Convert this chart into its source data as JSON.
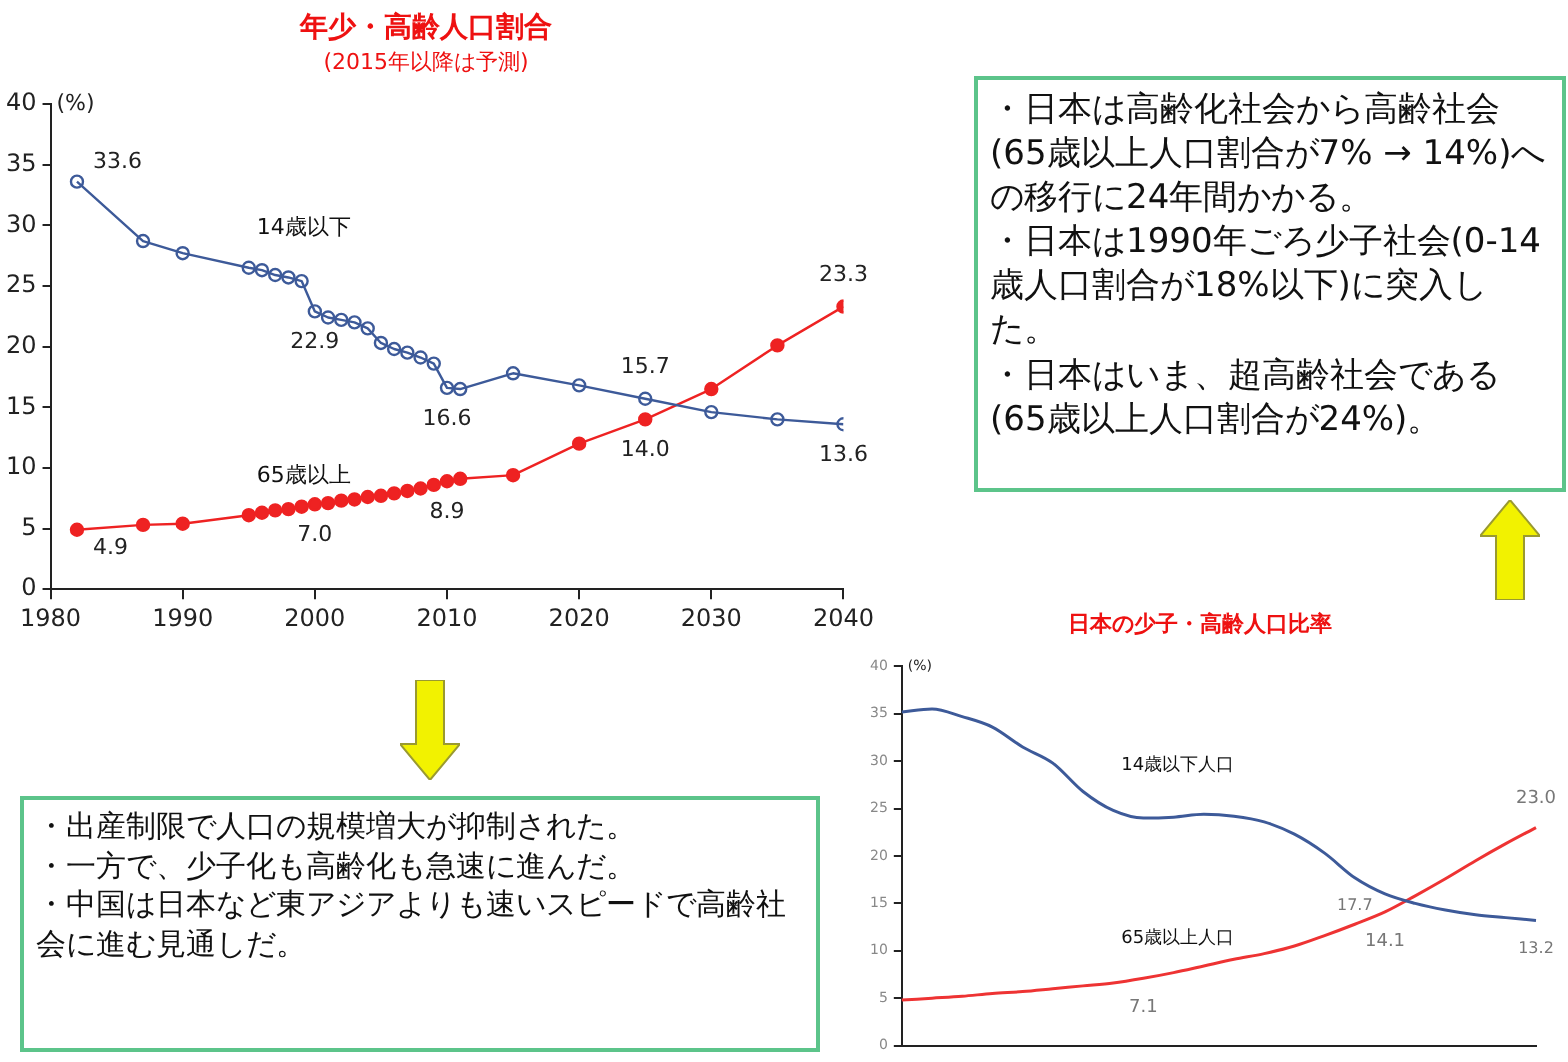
{
  "chart_data": [
    {
      "type": "line",
      "title": "年少・高齢人口割合",
      "subtitle": "(2015年以降は予測)",
      "ylabel": "(%)",
      "marker": "circle",
      "x": [
        1982,
        1987,
        1990,
        1995,
        1996,
        1997,
        1998,
        1999,
        2000,
        2001,
        2002,
        2003,
        2004,
        2005,
        2006,
        2007,
        2008,
        2009,
        2010,
        2011,
        2015,
        2020,
        2025,
        2030,
        2035,
        2040
      ],
      "xlim": [
        1980,
        2040
      ],
      "xticks": [
        1980,
        1990,
        2000,
        2010,
        2020,
        2030,
        2040
      ],
      "ylim": [
        0,
        40
      ],
      "yticks": [
        0,
        5,
        10,
        15,
        20,
        25,
        30,
        35,
        40
      ],
      "series": [
        {
          "name": "14歳以下",
          "color": "#3d5a99",
          "values": [
            33.6,
            28.7,
            27.7,
            26.5,
            26.3,
            25.9,
            25.7,
            25.4,
            22.9,
            22.4,
            22.2,
            22.0,
            21.5,
            20.3,
            19.8,
            19.5,
            19.1,
            18.6,
            16.6,
            16.5,
            17.8,
            16.8,
            15.7,
            14.6,
            14.0,
            13.6
          ],
          "value_labels": [
            "33.6",
            null,
            null,
            null,
            null,
            null,
            null,
            null,
            "22.9",
            null,
            null,
            null,
            null,
            null,
            null,
            null,
            null,
            null,
            "16.6",
            null,
            null,
            null,
            "15.7",
            null,
            null,
            "13.6"
          ]
        },
        {
          "name": "65歳以上",
          "color": "#ee2222",
          "values": [
            4.9,
            5.3,
            5.4,
            6.1,
            6.3,
            6.5,
            6.6,
            6.8,
            7.0,
            7.1,
            7.3,
            7.4,
            7.6,
            7.7,
            7.9,
            8.1,
            8.3,
            8.6,
            8.9,
            9.1,
            9.4,
            12.0,
            14.0,
            16.5,
            20.1,
            23.3
          ],
          "value_labels": [
            "4.9",
            null,
            null,
            null,
            null,
            null,
            null,
            null,
            "7.0",
            null,
            null,
            null,
            null,
            null,
            null,
            null,
            null,
            null,
            "8.9",
            null,
            null,
            null,
            "14.0",
            null,
            null,
            "23.3"
          ]
        }
      ]
    },
    {
      "type": "other",
      "annotations": [
        "・日本は高齢化社会から高齢社会(65歳以上人口割合が7% → 14%)への移行に24年間かかる。",
        "・日本は1990年ごろ少子社会(0-14歳人口割合が18%以下)に突入した。",
        "・日本はいま、超高齢社会である(65歳以上人口割合が24%)。"
      ]
    },
    {
      "type": "other",
      "annotations": [
        "・出産制限で人口の規模増大が抑制された。",
        "・一方で、少子化も高齢化も急速に進んだ。",
        "・中国は日本など東アジアよりも速いスピードで高齢社会に進む見通しだ。"
      ]
    },
    {
      "type": "line",
      "title": "日本の少子・高齢人口比率",
      "ylabel": "(%)",
      "marker": "none",
      "tick_labels": "y",
      "categories": [
        null,
        null,
        null,
        null,
        null,
        null,
        null,
        null,
        null,
        null,
        null,
        null,
        null,
        null,
        null,
        null,
        null,
        null,
        null,
        null,
        null,
        null
      ],
      "ylim": [
        0,
        40
      ],
      "yticks": [
        0,
        5,
        10,
        15,
        20,
        25,
        30,
        35,
        40
      ],
      "series": [
        {
          "name": "14歳以下人口",
          "color": "#3d5a99",
          "values": [
            35.2,
            35.5,
            34.7,
            33.6,
            31.5,
            29.8,
            26.8,
            24.8,
            24.0,
            24.1,
            24.4,
            24.2,
            23.6,
            22.3,
            20.3,
            17.7,
            16.0,
            15.0,
            14.3,
            13.8,
            13.5,
            13.2
          ],
          "value_labels": [
            null,
            null,
            null,
            null,
            null,
            null,
            null,
            null,
            null,
            null,
            null,
            null,
            null,
            null,
            null,
            "17.7",
            null,
            null,
            null,
            null,
            null,
            "13.2"
          ]
        },
        {
          "name": "65歳以上人口",
          "color": "#ee3333",
          "values": [
            4.8,
            5.0,
            5.2,
            5.5,
            5.7,
            6.0,
            6.3,
            6.6,
            7.1,
            7.7,
            8.4,
            9.1,
            9.7,
            10.5,
            11.6,
            12.8,
            14.1,
            15.8,
            17.6,
            19.5,
            21.3,
            23.0
          ],
          "value_labels": [
            null,
            null,
            null,
            null,
            null,
            null,
            null,
            null,
            "7.1",
            null,
            null,
            null,
            null,
            null,
            null,
            null,
            "14.1",
            null,
            null,
            null,
            null,
            "23.0"
          ]
        }
      ]
    }
  ]
}
